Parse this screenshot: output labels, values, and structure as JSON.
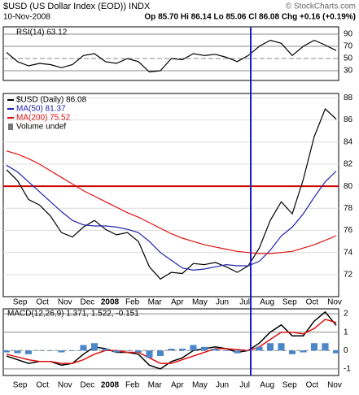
{
  "header": {
    "title": "$USD (US Dollar Index (EOD)) INDX",
    "copyright": "© StockCharts.com",
    "date": "10-Nov-2008",
    "quote": "Op 85.70 Hi 86.14 Lo 85.06 Cl 86.08 Chg +0.16 (+0.19%)"
  },
  "months": [
    "Sep",
    "Oct",
    "Nov",
    "Dec",
    "2008",
    "Feb",
    "Mar",
    "Apr",
    "May",
    "Jun",
    "Jul",
    "Aug",
    "Sep",
    "Oct",
    "Nov"
  ],
  "chart_data": [
    {
      "type": "line",
      "ylim": [
        14,
        102
      ],
      "yticks": [
        90,
        70,
        50,
        30
      ],
      "series": [
        {
          "name": "RSI(14) 63.12",
          "color": "#000000",
          "values": [
            60,
            45,
            38,
            42,
            40,
            35,
            40,
            55,
            58,
            45,
            42,
            50,
            45,
            28,
            30,
            50,
            48,
            58,
            55,
            57,
            52,
            45,
            55,
            70,
            80,
            75,
            55,
            70,
            80,
            72,
            63.12
          ]
        }
      ]
    },
    {
      "type": "line",
      "ylim": [
        70,
        88.4
      ],
      "yticks": [
        88,
        86,
        84,
        82,
        80,
        78,
        76,
        74,
        72
      ],
      "hline": 80,
      "extra_legend": "Volume undef",
      "series": [
        {
          "name": "$USD (Daily) 86.08",
          "color": "#000000",
          "values": [
            81.5,
            80.5,
            78.8,
            78.3,
            77.3,
            75.8,
            75.4,
            76.3,
            76.9,
            76.1,
            75.6,
            75.8,
            75.0,
            72.7,
            71.6,
            72.2,
            72.1,
            73.0,
            72.9,
            73.1,
            72.7,
            72.2,
            72.8,
            74.4,
            76.9,
            78.6,
            77.5,
            80.6,
            84.5,
            87.0,
            86.08
          ]
        },
        {
          "name": "MA(50) 81.37",
          "color": "#2222aa",
          "values": [
            81.9,
            81.3,
            80.4,
            79.5,
            78.6,
            77.7,
            76.9,
            76.5,
            76.4,
            76.4,
            76.3,
            76.1,
            75.8,
            75.0,
            74.0,
            73.3,
            72.6,
            72.4,
            72.5,
            72.7,
            72.9,
            72.8,
            72.8,
            73.2,
            74.2,
            75.5,
            76.3,
            77.5,
            79.0,
            80.4,
            81.37
          ]
        },
        {
          "name": "MA(200) 75.52",
          "color": "#dd1111",
          "values": [
            83.2,
            82.9,
            82.5,
            82.0,
            81.4,
            80.8,
            80.2,
            79.6,
            79.1,
            78.6,
            78.1,
            77.6,
            77.2,
            76.7,
            76.2,
            75.7,
            75.3,
            75.0,
            74.7,
            74.5,
            74.3,
            74.1,
            74.0,
            73.9,
            73.9,
            74.0,
            74.1,
            74.4,
            74.7,
            75.1,
            75.52
          ]
        }
      ]
    },
    {
      "type": "line",
      "ylim": [
        -1.36,
        2.27
      ],
      "yticks": [
        2,
        1,
        0,
        -1
      ],
      "legend": "MACD(12,26,9) 1.371, 1.522, -0.151",
      "series": [
        {
          "color": "#000000",
          "values": [
            -0.3,
            -0.5,
            -0.7,
            -0.6,
            -0.6,
            -0.8,
            -0.7,
            -0.2,
            0.2,
            0.1,
            -0.1,
            -0.1,
            -0.2,
            -0.8,
            -1.0,
            -0.6,
            -0.4,
            0,
            0.1,
            0.2,
            0.1,
            -0.1,
            0,
            0.4,
            1.0,
            1.4,
            0.8,
            0.8,
            1.6,
            2.1,
            1.371
          ]
        },
        {
          "color": "#dd1111",
          "values": [
            -0.2,
            -0.35,
            -0.5,
            -0.6,
            -0.6,
            -0.7,
            -0.7,
            -0.5,
            -0.2,
            0,
            0,
            -0.1,
            -0.1,
            -0.4,
            -0.7,
            -0.7,
            -0.5,
            -0.3,
            -0.1,
            0.1,
            0.1,
            0.05,
            0,
            0.2,
            0.6,
            1.0,
            1.0,
            0.9,
            1.2,
            1.7,
            1.522
          ]
        },
        {
          "color": "#4a86c8",
          "kind": "histogram",
          "values": [
            -0.1,
            -0.15,
            -0.2,
            0,
            0,
            -0.1,
            0,
            0.3,
            0.4,
            0.1,
            -0.1,
            0,
            -0.1,
            -0.4,
            -0.3,
            0.1,
            0.1,
            0.3,
            0.2,
            0.1,
            0,
            -0.15,
            0,
            0.2,
            0.4,
            0.4,
            -0.2,
            -0.1,
            0.4,
            0.4,
            -0.151
          ]
        }
      ]
    }
  ]
}
